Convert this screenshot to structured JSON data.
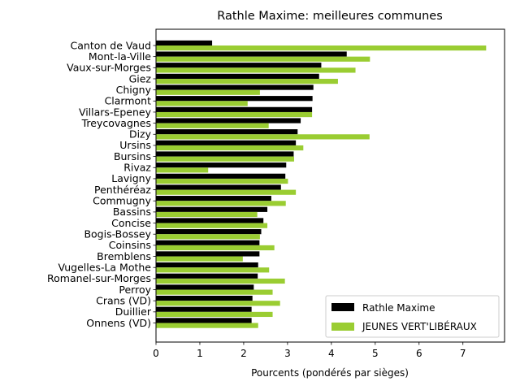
{
  "chart_data": {
    "type": "bar",
    "orientation": "horizontal",
    "title": "Rathle Maxime: meilleures communes",
    "xlabel": "Pourcents (pondérés par sièges)",
    "ylabel": "",
    "xlim": [
      0,
      7.95
    ],
    "xticks": [
      0,
      1,
      2,
      3,
      4,
      5,
      6,
      7
    ],
    "legend_position": "bottom-right",
    "categories": [
      "Canton de Vaud",
      "Mont-la-Ville",
      "Vaux-sur-Morges",
      "Giez",
      "Chigny",
      "Clarmont",
      "Villars-Epeney",
      "Treycovagnes",
      "Dizy",
      "Ursins",
      "Bursins",
      "Rivaz",
      "Lavigny",
      "Penthéréaz",
      "Commugny",
      "Bassins",
      "Concise",
      "Bogis-Bossey",
      "Coinsins",
      "Bremblens",
      "Vugelles-La Mothe",
      "Romanel-sur-Morges",
      "Perroy",
      "Crans (VD)",
      "Duillier",
      "Onnens (VD)"
    ],
    "series": [
      {
        "name": "Rathle Maxime",
        "color": "#000000",
        "values": [
          1.28,
          4.35,
          3.77,
          3.72,
          3.59,
          3.57,
          3.56,
          3.3,
          3.23,
          3.19,
          3.14,
          2.97,
          2.95,
          2.85,
          2.63,
          2.54,
          2.45,
          2.4,
          2.36,
          2.36,
          2.33,
          2.32,
          2.23,
          2.2,
          2.18,
          2.18
        ]
      },
      {
        "name": "JEUNES VERT'LIBÉRAUX",
        "color": "#9acd32",
        "values": [
          7.53,
          4.88,
          4.55,
          4.15,
          2.37,
          2.09,
          3.56,
          2.57,
          4.87,
          3.36,
          3.15,
          1.19,
          3.01,
          3.19,
          2.96,
          2.31,
          2.54,
          2.37,
          2.7,
          1.98,
          2.58,
          2.94,
          2.66,
          2.83,
          2.66,
          2.33
        ]
      }
    ]
  }
}
